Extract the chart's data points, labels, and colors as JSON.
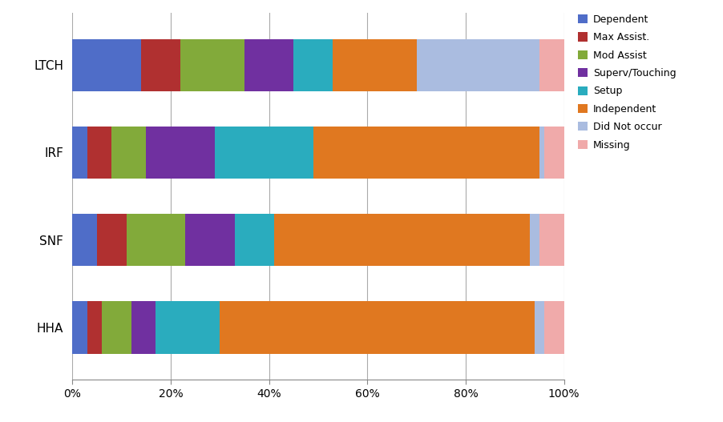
{
  "providers": [
    "LTCH",
    "IRF",
    "SNF",
    "HHA"
  ],
  "categories": [
    "Dependent",
    "Max Assist.",
    "Mod Assist",
    "Superv/Touching",
    "Setup",
    "Independent",
    "Did Not occur",
    "Missing"
  ],
  "colors": [
    "#4F6DC8",
    "#B03030",
    "#82AA3A",
    "#7030A0",
    "#2AACBE",
    "#E07820",
    "#AABCE0",
    "#F0AAAA"
  ],
  "data": {
    "LTCH": [
      14.0,
      8.0,
      13.0,
      10.0,
      8.0,
      17.0,
      25.0,
      5.0
    ],
    "IRF": [
      3.0,
      5.0,
      7.0,
      14.0,
      20.0,
      46.0,
      1.0,
      4.0
    ],
    "SNF": [
      5.0,
      6.0,
      12.0,
      10.0,
      8.0,
      52.0,
      2.0,
      5.0
    ],
    "HHA": [
      3.0,
      3.0,
      6.0,
      5.0,
      13.0,
      64.0,
      2.0,
      4.0
    ]
  },
  "xlim": [
    0,
    100
  ],
  "xtick_labels": [
    "0%",
    "20%",
    "40%",
    "60%",
    "80%",
    "100%"
  ],
  "xtick_vals": [
    0,
    20,
    40,
    60,
    80,
    100
  ],
  "background_color": "#FFFFFF",
  "bar_height": 0.6,
  "legend_fontsize": 9,
  "tick_fontsize": 10,
  "label_fontsize": 11,
  "figsize": [
    9.02,
    5.27
  ],
  "dpi": 100
}
